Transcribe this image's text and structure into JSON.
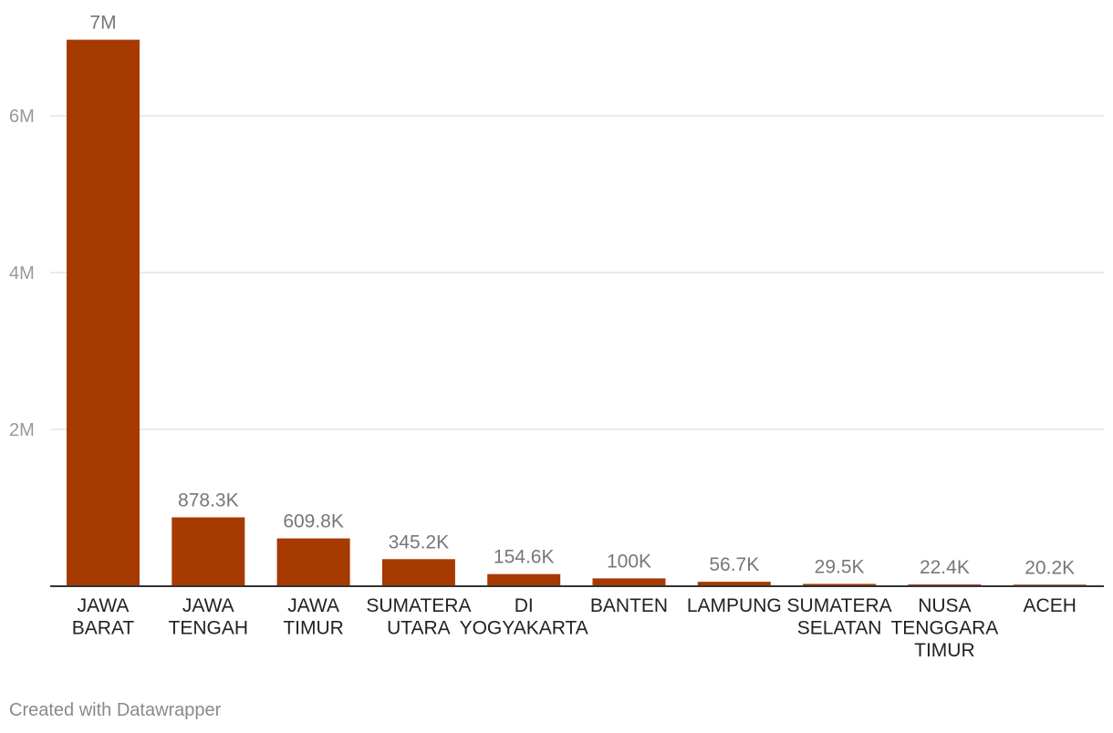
{
  "chart_data": {
    "type": "bar",
    "categories": [
      [
        "JAWA",
        "BARAT"
      ],
      [
        "JAWA",
        "TENGAH"
      ],
      [
        "JAWA",
        "TIMUR"
      ],
      [
        "SUMATERA",
        "UTARA"
      ],
      [
        "DI",
        "YOGYAKARTA"
      ],
      [
        "BANTEN"
      ],
      [
        "LAMPUNG"
      ],
      [
        "SUMATERA",
        "SELATAN"
      ],
      [
        "NUSA",
        "TENGGARA",
        "TIMUR"
      ],
      [
        "ACEH"
      ]
    ],
    "values": [
      6970000,
      878300,
      609800,
      345200,
      154600,
      100000,
      56700,
      29500,
      22400,
      20200
    ],
    "value_labels": [
      "7M",
      "878.3K",
      "609.8K",
      "345.2K",
      "154.6K",
      "100K",
      "56.7K",
      "29.5K",
      "22.4K",
      "20.2K"
    ],
    "yticks": [
      {
        "value": 2000000,
        "label": "2M"
      },
      {
        "value": 4000000,
        "label": "4M"
      },
      {
        "value": 6000000,
        "label": "6M"
      }
    ],
    "ylim": [
      0,
      7000000
    ],
    "grid": true,
    "bar_color": "#a63a00",
    "title": "",
    "xlabel": "",
    "ylabel": ""
  },
  "footer": {
    "credit": "Created with Datawrapper"
  }
}
